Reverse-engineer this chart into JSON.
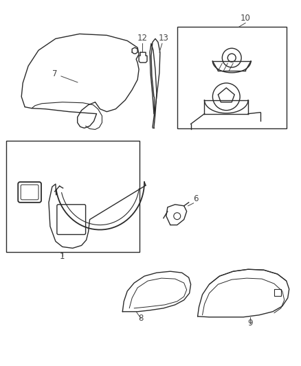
{
  "background_color": "#ffffff",
  "line_color": "#2a2a2a",
  "label_color": "#444444",
  "figsize": [
    4.38,
    5.33
  ],
  "dpi": 100,
  "parts": [
    "1",
    "6",
    "7",
    "8",
    "9",
    "10",
    "12",
    "13"
  ]
}
